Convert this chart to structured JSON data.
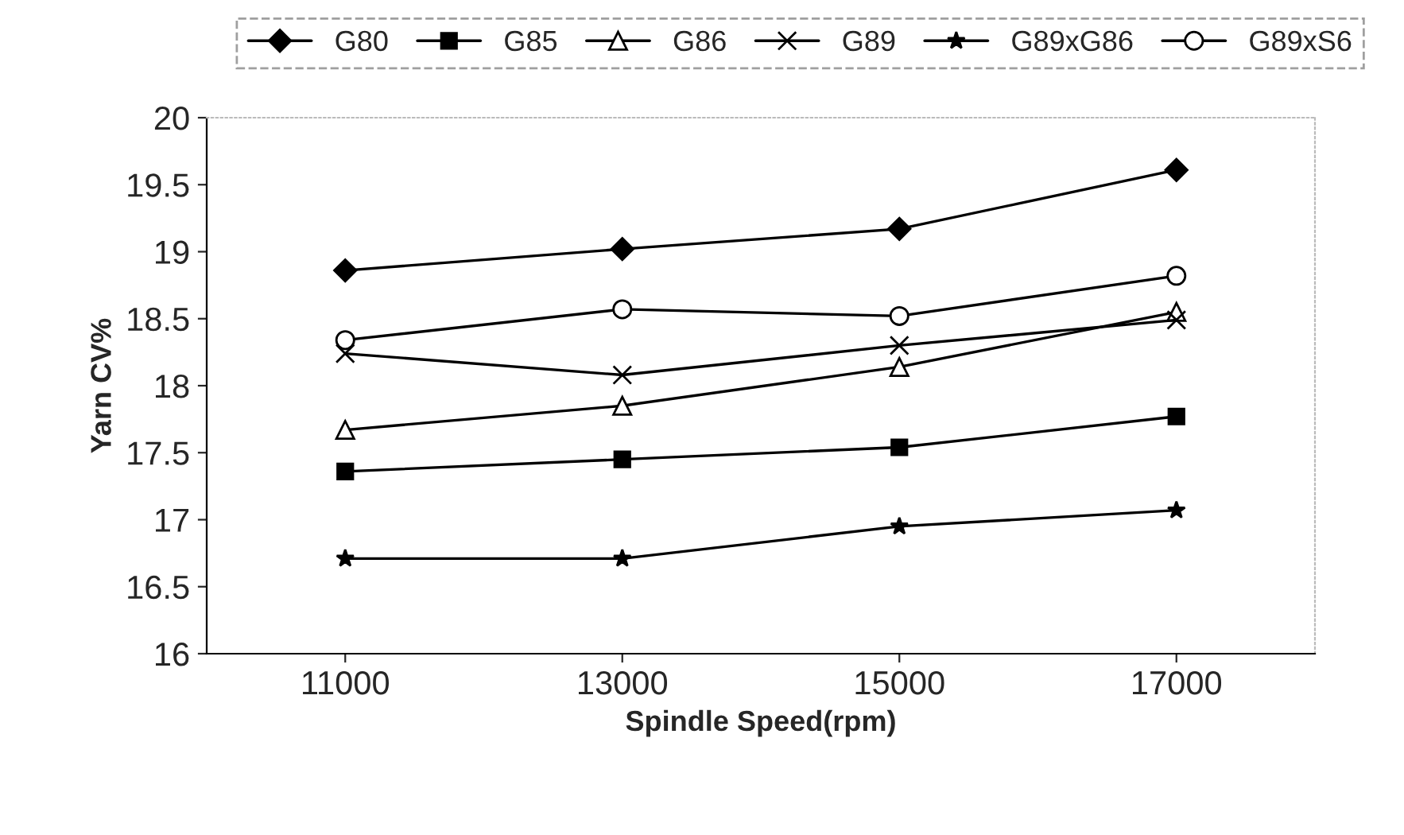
{
  "chart_data": {
    "type": "line",
    "xlabel": "Spindle Speed(rpm)",
    "ylabel": "Yarn CV%",
    "categories": [
      "11000",
      "13000",
      "15000",
      "17000"
    ],
    "series": [
      {
        "name": "G80",
        "color": "#000000",
        "marker": "diamond",
        "values": [
          18.86,
          19.02,
          19.17,
          19.61
        ]
      },
      {
        "name": "G85",
        "color": "#000000",
        "marker": "square",
        "values": [
          17.36,
          17.45,
          17.54,
          17.77
        ]
      },
      {
        "name": "G86",
        "color": "#000000",
        "marker": "triangle",
        "values": [
          17.67,
          17.85,
          18.14,
          18.55
        ]
      },
      {
        "name": "G89",
        "color": "#000000",
        "marker": "cross",
        "values": [
          18.24,
          18.08,
          18.3,
          18.49
        ]
      },
      {
        "name": "G89xG86",
        "color": "#000000",
        "marker": "star",
        "values": [
          16.71,
          16.71,
          16.95,
          17.07
        ]
      },
      {
        "name": "G89xS6",
        "color": "#000000",
        "marker": "circle",
        "values": [
          18.34,
          18.57,
          18.52,
          18.82
        ]
      }
    ],
    "ylim": [
      16,
      20
    ],
    "yticks": [
      16,
      {
        "value": 16.5,
        "label": "16.5"
      },
      17,
      {
        "value": 17.5,
        "label": "17.5"
      },
      18,
      {
        "value": 18.5,
        "label": "18.5"
      },
      19,
      {
        "value": 19.5,
        "label": "19.5"
      },
      20
    ],
    "grid": false,
    "legend": "top",
    "line_style": "solid"
  }
}
